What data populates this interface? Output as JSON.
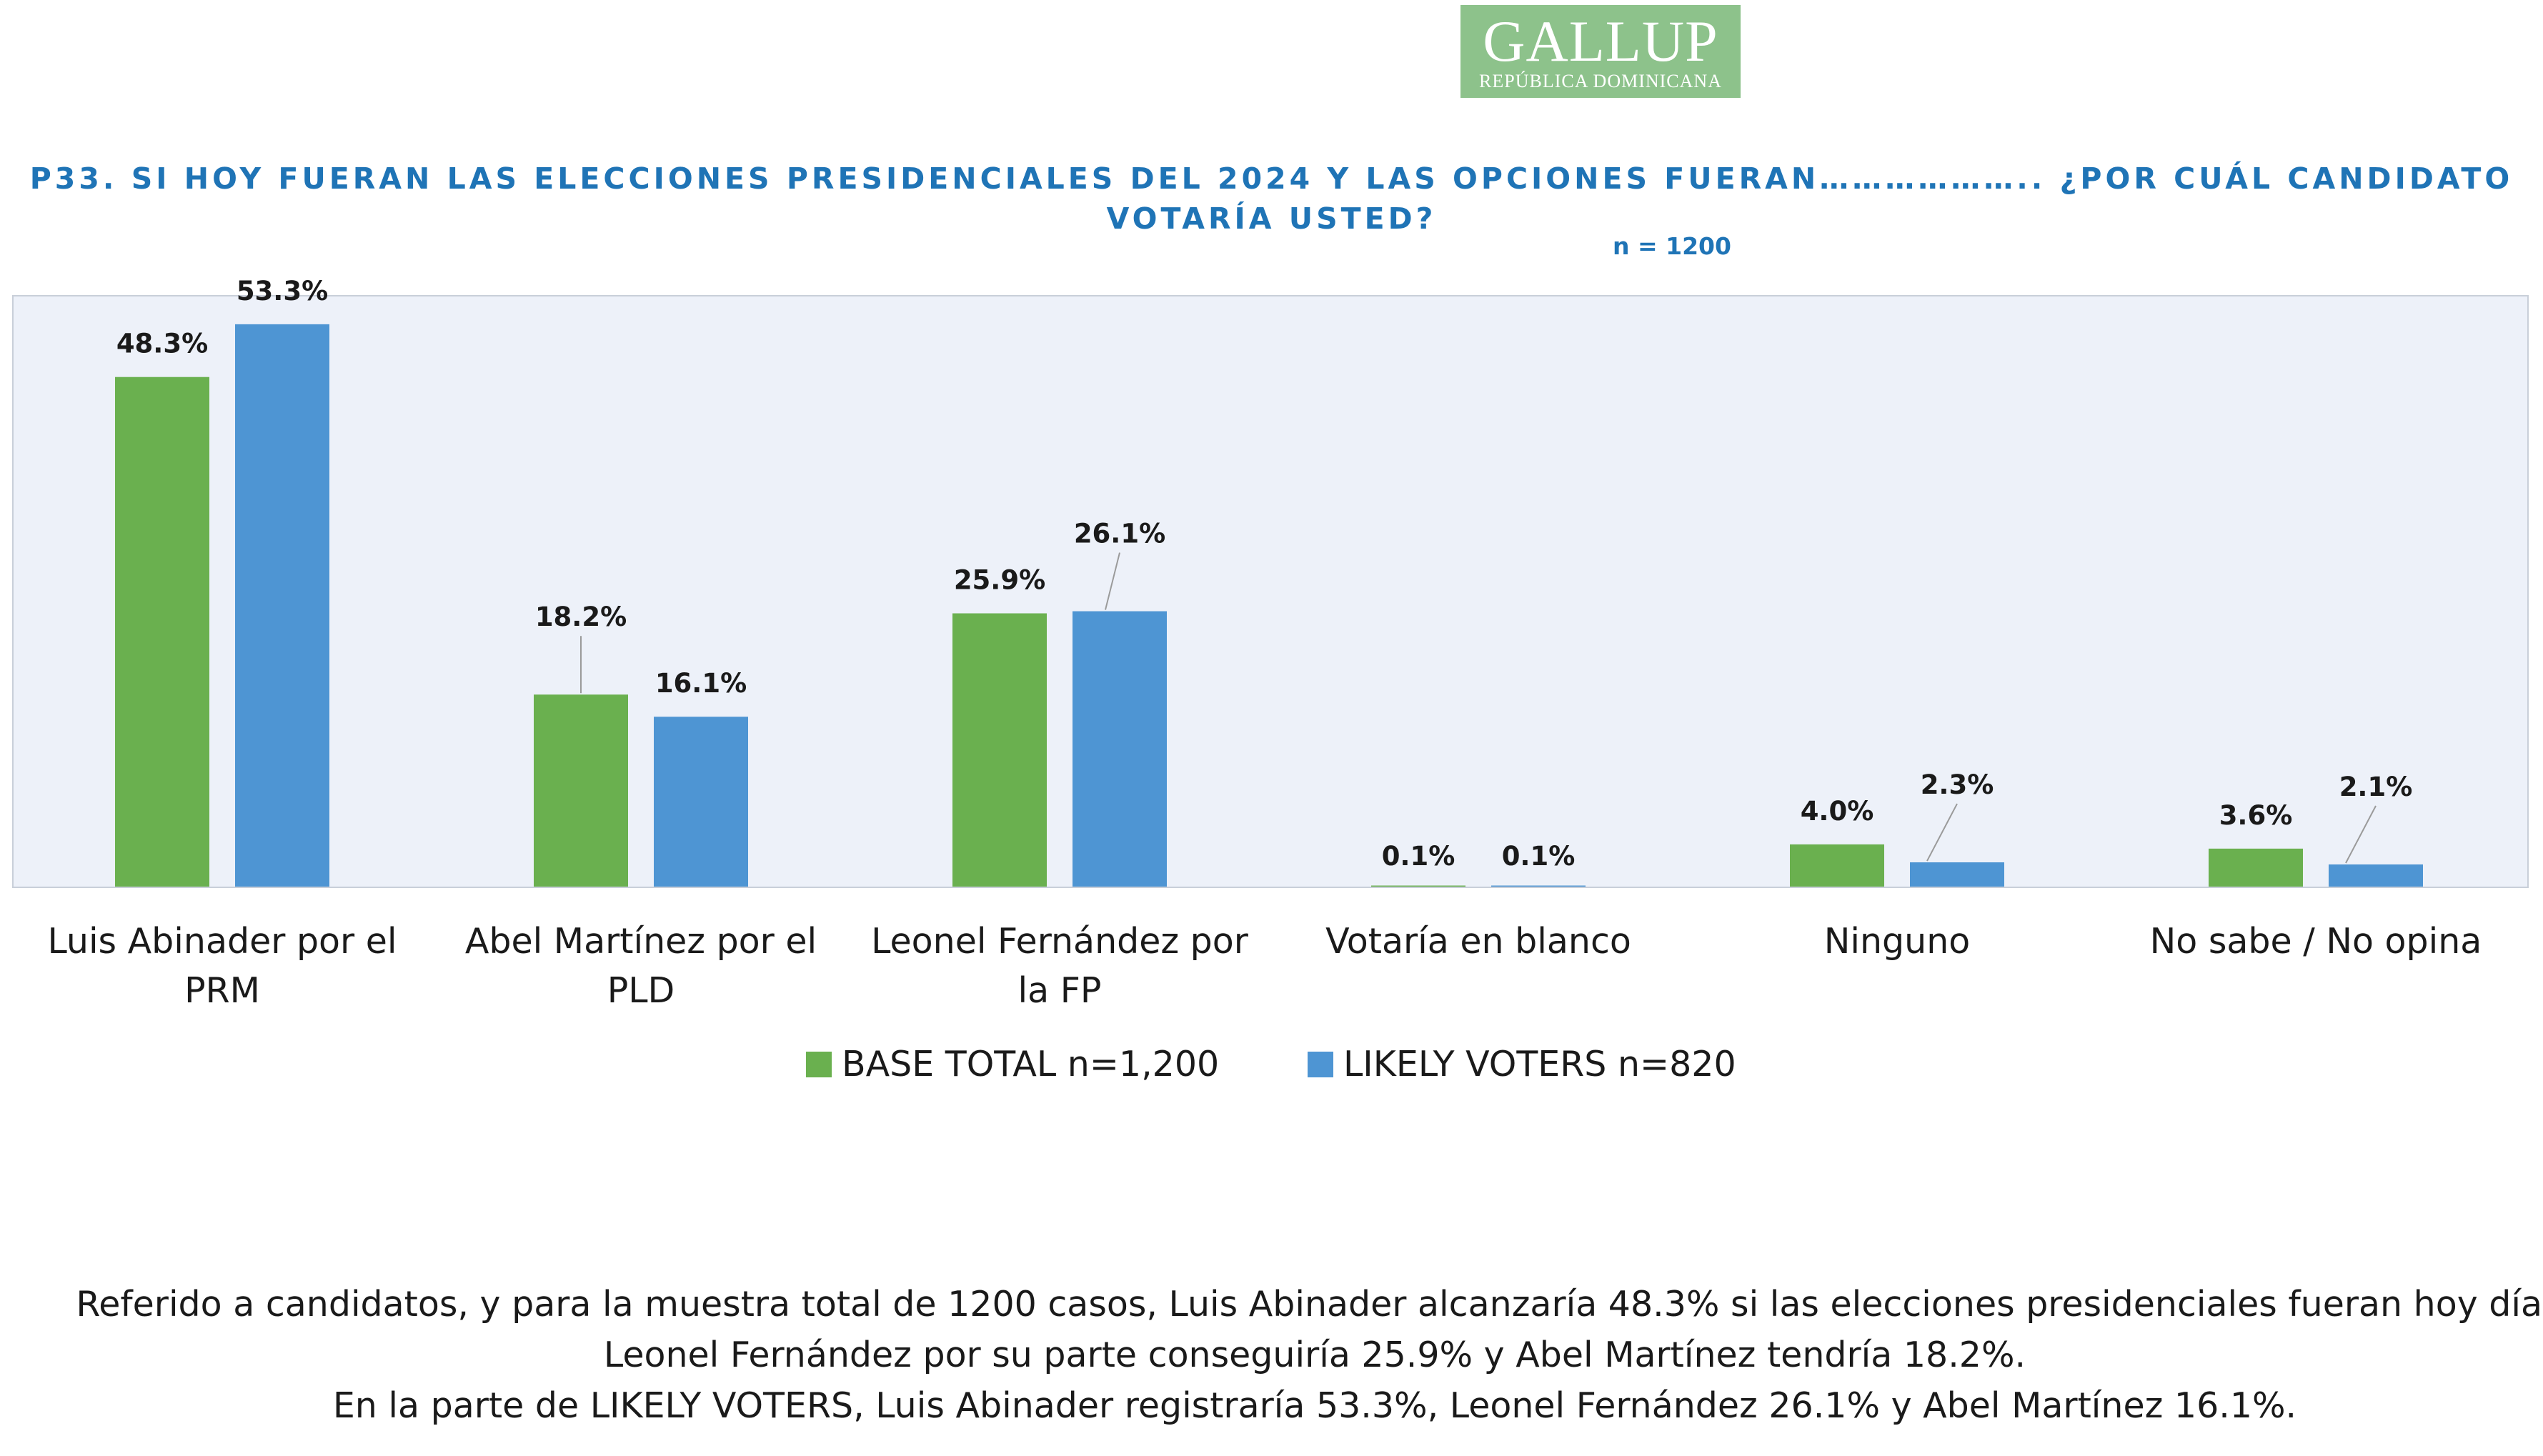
{
  "logo": {
    "word": "GALLUP",
    "subtitle": "REPÚBLICA DOMINICANA"
  },
  "title": "P33.  SI HOY FUERAN LAS ELECCIONES PRESIDENCIALES DEL 2024 Y LAS OPCIONES FUERAN……………….. ¿POR CUÁL CANDIDATO VOTARÍA USTED?",
  "sample_note": "n = 1200",
  "colors": {
    "base_total": "#6ab04f",
    "likely_voters": "#4e95d3",
    "plot_background": "#edf1f9",
    "title": "#1f74b6"
  },
  "chart_data": {
    "type": "bar",
    "categories": [
      [
        "Luis Abinader por el",
        "PRM"
      ],
      [
        "Abel Martínez por el",
        "PLD"
      ],
      [
        "Leonel Fernández por",
        "la FP"
      ],
      [
        "Votaría en blanco"
      ],
      [
        "Ninguno"
      ],
      [
        "No sabe / No opina"
      ]
    ],
    "series": [
      {
        "name": "BASE TOTAL n=1,200",
        "values": [
          48.3,
          18.2,
          25.9,
          0.1,
          4.0,
          3.6
        ],
        "labels": [
          "48.3%",
          "18.2%",
          "25.9%",
          "0.1%",
          "4.0%",
          "3.6%"
        ]
      },
      {
        "name": "LIKELY VOTERS n=820",
        "values": [
          53.3,
          16.1,
          26.1,
          0.1,
          2.3,
          2.1
        ],
        "labels": [
          "53.3%",
          "16.1%",
          "26.1%",
          "0.1%",
          "2.3%",
          "2.1%"
        ]
      }
    ],
    "ylim": [
      0,
      56
    ],
    "grid": false,
    "legend": "bottom-center"
  },
  "notes": [
    "Referido a candidatos, y para la muestra total de 1200 casos, Luis Abinader alcanzaría 48.3% si las elecciones presidenciales fueran hoy día.",
    "Leonel Fernández por su parte conseguiría 25.9% y Abel Martínez tendría 18.2%.",
    "En la parte de LIKELY VOTERS, Luis Abinader registraría 53.3%, Leonel Fernández 26.1% y Abel Martínez 16.1%."
  ]
}
